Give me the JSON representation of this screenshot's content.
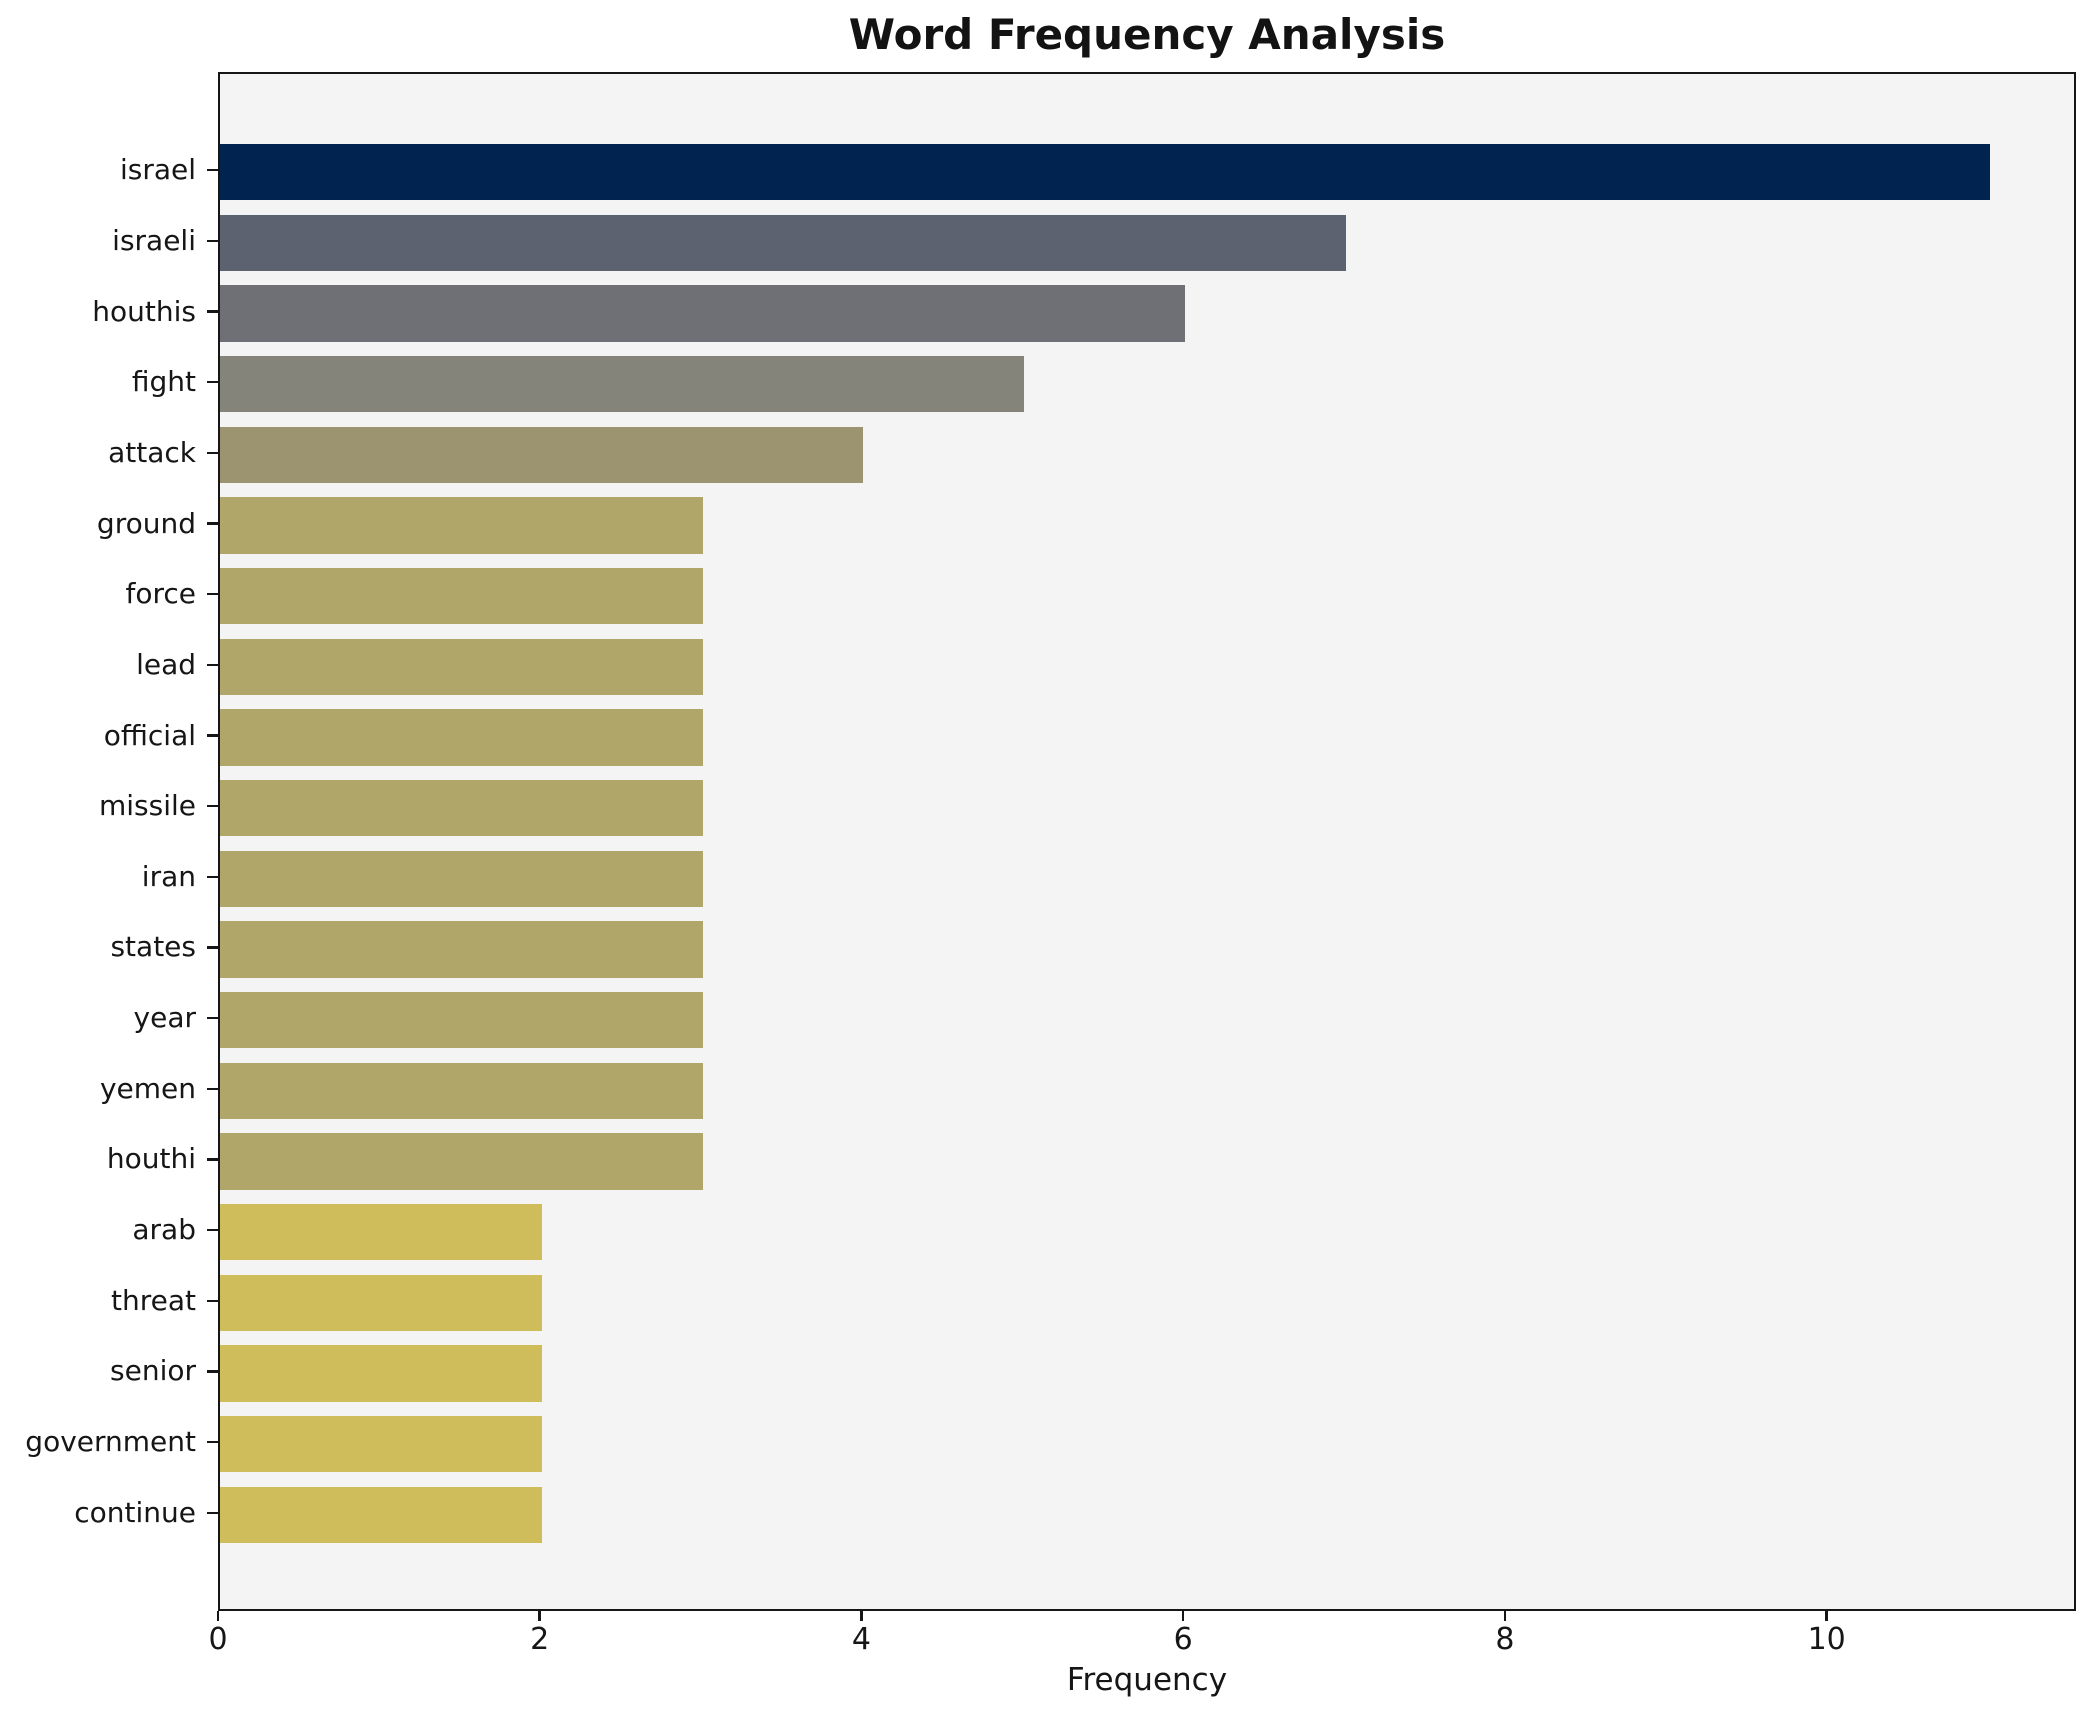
{
  "chart_data": {
    "type": "bar",
    "orientation": "horizontal",
    "title": "Word Frequency Analysis",
    "xlabel": "Frequency",
    "ylabel": "",
    "categories": [
      "israel",
      "israeli",
      "houthis",
      "fight",
      "attack",
      "ground",
      "force",
      "lead",
      "official",
      "missile",
      "iran",
      "states",
      "year",
      "yemen",
      "houthi",
      "arab",
      "threat",
      "senior",
      "government",
      "continue"
    ],
    "values": [
      11,
      7,
      6,
      5,
      4,
      3,
      3,
      3,
      3,
      3,
      3,
      3,
      3,
      3,
      3,
      2,
      2,
      2,
      2,
      2
    ],
    "bar_colors": [
      "#00234f",
      "#5c6270",
      "#6f7076",
      "#85847a",
      "#9c9470",
      "#b0a66a",
      "#b0a66a",
      "#b0a66a",
      "#b0a66a",
      "#b0a66a",
      "#b0a66a",
      "#b0a66a",
      "#b0a66a",
      "#b0a66a",
      "#b0a66a",
      "#cfbd5b",
      "#cfbd5b",
      "#cfbd5b",
      "#cfbd5b",
      "#cfbd5b"
    ],
    "xticks": [
      0,
      2,
      4,
      6,
      8,
      10
    ],
    "xlim": [
      0,
      11.55
    ],
    "grid": false,
    "legend_position": "none",
    "plot_background": "#f5f4f5",
    "figure_background": "#ffffff",
    "spine_color": "#161616",
    "text_color": "#161616"
  }
}
